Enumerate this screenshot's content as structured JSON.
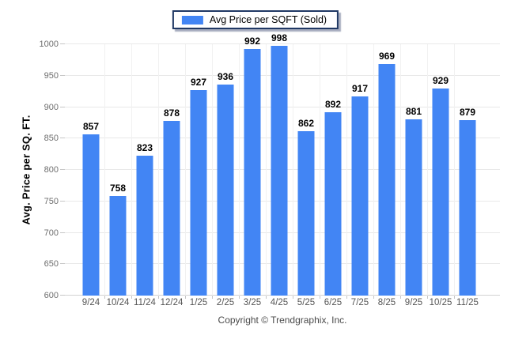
{
  "chart_data": {
    "type": "bar",
    "categories": [
      "9/24",
      "10/24",
      "11/24",
      "12/24",
      "1/25",
      "2/25",
      "3/25",
      "4/25",
      "5/25",
      "6/25",
      "7/25",
      "8/25",
      "9/25",
      "10/25",
      "11/25"
    ],
    "values": [
      857,
      758,
      823,
      878,
      927,
      936,
      992,
      998,
      862,
      892,
      917,
      969,
      881,
      929,
      879
    ],
    "series_name": "Avg Price per SQFT (Sold)",
    "title": "",
    "xlabel": "",
    "ylabel": "Avg. Price per SQ. FT.",
    "ylim": [
      600,
      1000
    ],
    "ytick_step": 50,
    "grid": true,
    "legend_position": "top-center",
    "bar_color": "#4285F4"
  },
  "legend": {
    "label": "Avg Price per SQFT (Sold)",
    "swatch_color": "#4285F4"
  },
  "footer": {
    "text": "Copyright © Trendgraphix, Inc."
  },
  "colors": {
    "bar": "#4285F4",
    "legend_border": "#203864",
    "gridline": "#e8e8e8",
    "vertical_gridline": "#f1f1f1",
    "axis_line": "#d2d2d2",
    "axis_tick": "#c6c6c6",
    "y_tick_text": "#6e6e6e",
    "x_tick_text": "#565656",
    "value_label_text": "#000000"
  }
}
